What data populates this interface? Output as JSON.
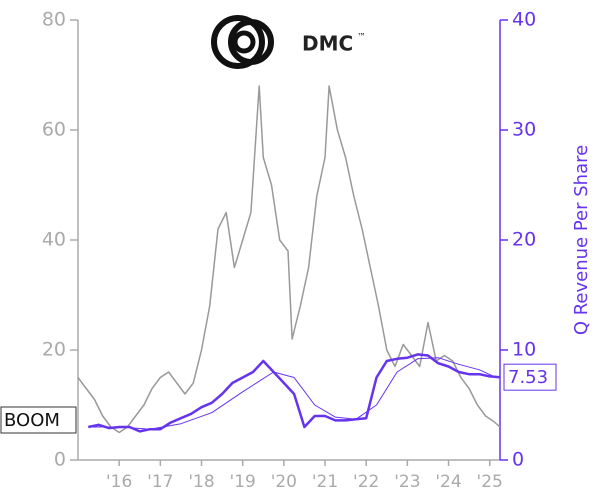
{
  "chart_data": {
    "type": "line",
    "logo_text": "DMC",
    "logo_mark": "™",
    "ticker": "BOOM",
    "y2_label": "Q Revenue Per Share",
    "last_value": 7.53,
    "xlim": [
      2015,
      2025.25
    ],
    "xticks": [
      {
        "value": 2016,
        "label": "'16"
      },
      {
        "value": 2017,
        "label": "'17"
      },
      {
        "value": 2018,
        "label": "'18"
      },
      {
        "value": 2019,
        "label": "'19"
      },
      {
        "value": 2020,
        "label": "'20"
      },
      {
        "value": 2021,
        "label": "'21"
      },
      {
        "value": 2022,
        "label": "'22"
      },
      {
        "value": 2023,
        "label": "'23"
      },
      {
        "value": 2024,
        "label": "'24"
      },
      {
        "value": 2025,
        "label": "'25"
      }
    ],
    "ylim": [
      0,
      80
    ],
    "yticks": [
      0,
      20,
      40,
      60,
      80
    ],
    "y2lim": [
      0,
      40
    ],
    "y2ticks": [
      0,
      10,
      20,
      30,
      40
    ],
    "series": [
      {
        "color": "#999999",
        "width": 1.5,
        "x": [
          2015.0,
          2015.2,
          2015.4,
          2015.6,
          2015.8,
          2016.0,
          2016.2,
          2016.4,
          2016.6,
          2016.8,
          2017.0,
          2017.2,
          2017.4,
          2017.6,
          2017.8,
          2018.0,
          2018.2,
          2018.4,
          2018.6,
          2018.8,
          2019.0,
          2019.2,
          2019.4,
          2019.5,
          2019.7,
          2019.9,
          2020.1,
          2020.2,
          2020.4,
          2020.6,
          2020.8,
          2021.0,
          2021.1,
          2021.3,
          2021.5,
          2021.7,
          2021.9,
          2022.1,
          2022.3,
          2022.5,
          2022.7,
          2022.9,
          2023.1,
          2023.3,
          2023.5,
          2023.7,
          2023.9,
          2024.1,
          2024.3,
          2024.5,
          2024.7,
          2024.9,
          2025.1,
          2025.25
        ],
        "values": [
          15,
          13,
          11,
          8,
          6,
          5,
          6,
          8,
          10,
          13,
          15,
          16,
          14,
          12,
          14,
          20,
          28,
          42,
          45,
          35,
          40,
          45,
          68,
          55,
          50,
          40,
          38,
          22,
          28,
          35,
          48,
          55,
          68,
          60,
          55,
          48,
          42,
          35,
          28,
          20,
          17,
          21,
          19,
          17,
          25,
          18,
          19,
          18,
          15,
          13,
          10,
          8,
          7,
          6
        ]
      },
      {
        "color": "#6633ee",
        "width": 2.5,
        "axis": "y2",
        "x": [
          2015.25,
          2015.5,
          2015.75,
          2016.0,
          2016.25,
          2016.5,
          2016.75,
          2017.0,
          2017.25,
          2017.5,
          2017.75,
          2018.0,
          2018.25,
          2018.5,
          2018.75,
          2019.0,
          2019.25,
          2019.5,
          2019.75,
          2020.0,
          2020.25,
          2020.5,
          2020.75,
          2021.0,
          2021.25,
          2021.5,
          2021.75,
          2022.0,
          2022.25,
          2022.5,
          2022.75,
          2023.0,
          2023.25,
          2023.5,
          2023.75,
          2024.0,
          2024.25,
          2024.5,
          2024.75,
          2025.0,
          2025.25
        ],
        "values": [
          3.0,
          3.2,
          2.9,
          3.0,
          3.0,
          2.6,
          2.8,
          2.8,
          3.4,
          3.8,
          4.2,
          4.8,
          5.2,
          6.0,
          7.0,
          7.5,
          8.0,
          9.0,
          8.0,
          7.0,
          6.0,
          3.0,
          4.0,
          4.0,
          3.6,
          3.6,
          3.7,
          3.8,
          7.5,
          9.0,
          9.2,
          9.3,
          9.6,
          9.5,
          8.8,
          8.5,
          8.0,
          7.8,
          7.8,
          7.6,
          7.53
        ]
      },
      {
        "color": "#6633ee",
        "width": 1,
        "axis": "y2",
        "x": [
          2015.25,
          2016.0,
          2016.75,
          2017.5,
          2018.25,
          2019.0,
          2019.75,
          2020.25,
          2020.75,
          2021.25,
          2021.75,
          2022.25,
          2022.75,
          2023.25,
          2023.75,
          2024.25,
          2024.75,
          2025.1
        ],
        "values": [
          3.0,
          3.0,
          2.8,
          3.3,
          4.3,
          6.2,
          8.0,
          7.5,
          5.0,
          3.9,
          3.7,
          5.0,
          8.0,
          9.2,
          9.3,
          8.7,
          8.2,
          7.6
        ]
      }
    ]
  }
}
